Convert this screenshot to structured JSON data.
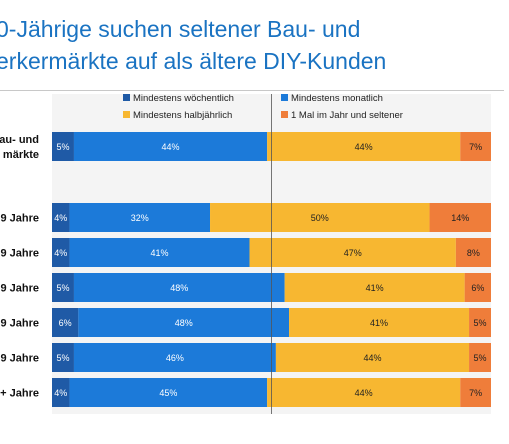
{
  "title": {
    "line1": "0-Jährige suchen seltener Bau- und",
    "line2": "erkermärkte auf als ältere DIY-Kunden"
  },
  "chart_data": {
    "type": "bar",
    "orientation": "horizontal",
    "stacked": true,
    "percent": true,
    "legend_position": "top",
    "series": [
      {
        "name": "Mindestens wöchentlich",
        "color": "#1f5aa6",
        "label_color": "#ffffff",
        "values": [
          5,
          4,
          4,
          5,
          6,
          5,
          4
        ]
      },
      {
        "name": "Mindestens monatlich",
        "color": "#1c7ad9",
        "label_color": "#ffffff",
        "values": [
          44,
          32,
          41,
          48,
          48,
          46,
          45
        ]
      },
      {
        "name": "Mindestens halbjährlich",
        "color": "#f7b731",
        "label_color": "#222222",
        "values": [
          44,
          50,
          47,
          41,
          41,
          44,
          44
        ]
      },
      {
        "name": "1 Mal im Jahr und seltener",
        "color": "#ef7d3a",
        "label_color": "#222222",
        "values": [
          7,
          14,
          8,
          6,
          5,
          5,
          7
        ]
      }
    ],
    "categories": [
      {
        "label_lines": [
          "au- und",
          "märkte"
        ],
        "gap_before": false
      },
      {
        "label_lines": [
          "9 Jahre"
        ],
        "gap_before": true
      },
      {
        "label_lines": [
          "9 Jahre"
        ],
        "gap_before": false
      },
      {
        "label_lines": [
          "9 Jahre"
        ],
        "gap_before": false
      },
      {
        "label_lines": [
          "9 Jahre"
        ],
        "gap_before": false
      },
      {
        "label_lines": [
          "9 Jahre"
        ],
        "gap_before": false
      },
      {
        "label_lines": [
          "+ Jahre"
        ],
        "gap_before": false
      }
    ],
    "value_suffix": "%",
    "xlim": [
      0,
      100
    ],
    "reference_line": 50
  }
}
